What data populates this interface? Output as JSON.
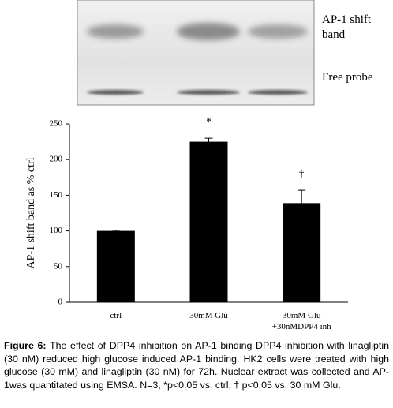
{
  "blot": {
    "labels": [
      "AP-1 shift band",
      "Free probe"
    ]
  },
  "chart_data": {
    "type": "bar",
    "ylabel": "AP-1 shift band as % ctrl",
    "categories": [
      "ctrl",
      "30mM Glu",
      "30mM Glu +30nMDPP4 inh"
    ],
    "values": [
      100,
      225,
      139
    ],
    "errors": [
      1,
      5,
      18
    ],
    "annotations": [
      null,
      "*",
      "†"
    ],
    "color": "#000000",
    "ylim": [
      0,
      250
    ],
    "yticks": [
      0,
      50,
      100,
      150,
      200,
      250
    ]
  },
  "caption": {
    "label": "Figure 6:",
    "text": "The effect of DPP4 inhibition on AP-1 binding DPP4 inhibition with linagliptin (30 nM) reduced high glucose induced AP-1 binding. HK2 cells were treated with high glucose (30 mM) and linagliptin (30 nM) for 72h. Nuclear extract was collected and AP-1was quantitated using EMSA. N=3, *p<0.05 vs. ctrl, † p<0.05 vs. 30 mM Glu."
  }
}
